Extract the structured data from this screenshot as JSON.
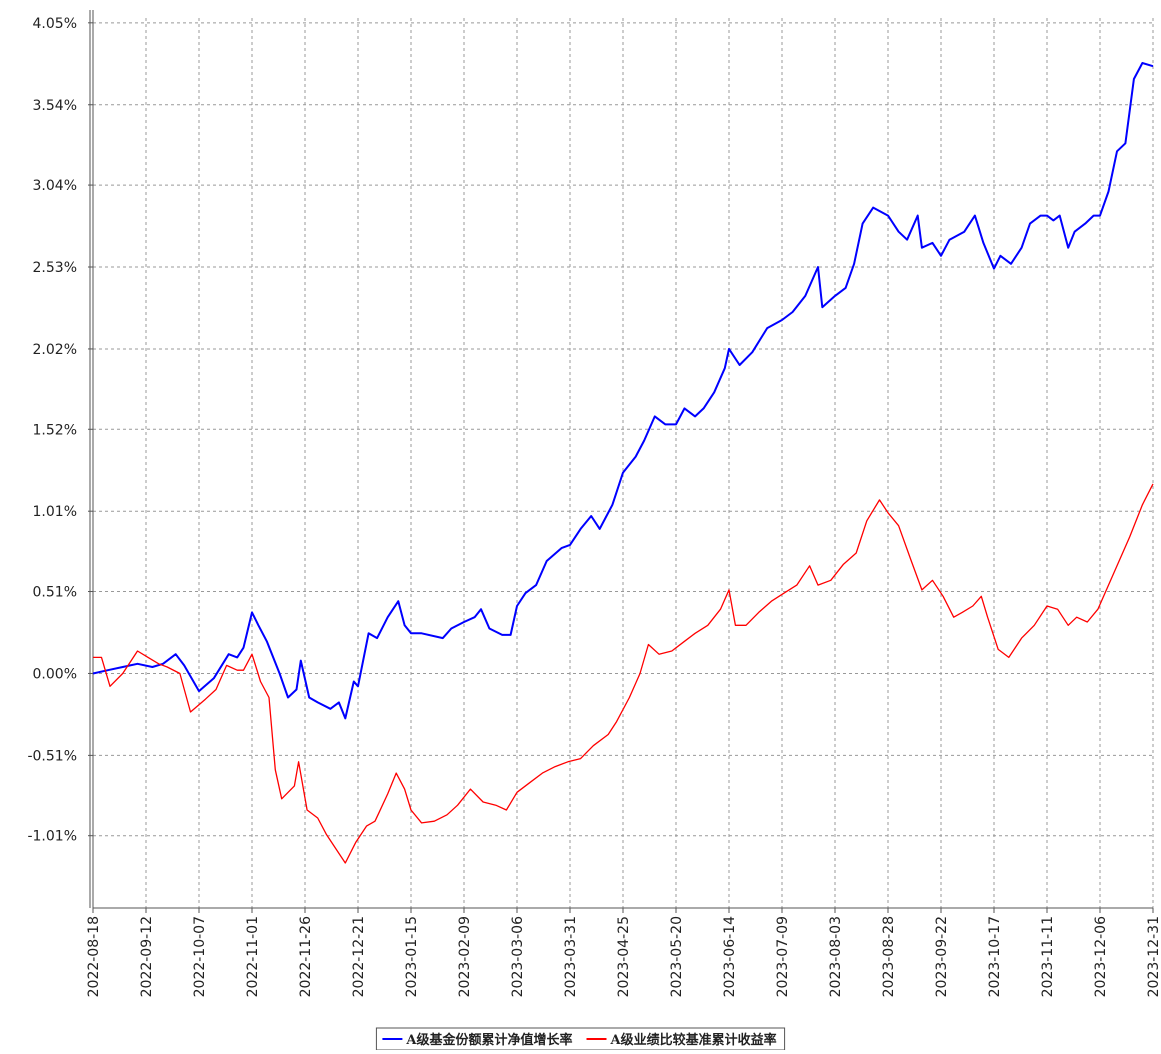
{
  "chart_data": {
    "type": "line",
    "xlim": [
      "2022-08-18",
      "2023-12-31"
    ],
    "xticks": [
      "2022-08-18",
      "2022-09-12",
      "2022-10-07",
      "2022-11-01",
      "2022-11-26",
      "2022-12-21",
      "2023-01-15",
      "2023-02-09",
      "2023-03-06",
      "2023-03-31",
      "2023-04-25",
      "2023-05-20",
      "2023-06-14",
      "2023-07-09",
      "2023-08-03",
      "2023-08-28",
      "2023-09-22",
      "2023-10-17",
      "2023-11-11",
      "2023-12-06",
      "2023-12-31"
    ],
    "ylim": [
      -1.46,
      4.08
    ],
    "yticks": [
      {
        "value": 4.05,
        "label": "4.05%"
      },
      {
        "value": 3.54,
        "label": "3.54%"
      },
      {
        "value": 3.04,
        "label": "3.04%"
      },
      {
        "value": 2.53,
        "label": "2.53%"
      },
      {
        "value": 2.02,
        "label": "2.02%"
      },
      {
        "value": 1.52,
        "label": "1.52%"
      },
      {
        "value": 1.01,
        "label": "1.01%"
      },
      {
        "value": 0.51,
        "label": "0.51%"
      },
      {
        "value": 0,
        "label": "0.00%"
      },
      {
        "value": -0.51,
        "label": "-0.51%"
      },
      {
        "value": -1.01,
        "label": "-1.01%"
      }
    ],
    "grid": true,
    "legend": "bottom",
    "series": [
      {
        "name": "A级基金份额累计净值增长率",
        "color": "#0000ff",
        "x": [
          "2022-08-18",
          "2022-08-25",
          "2022-09-01",
          "2022-09-08",
          "2022-09-15",
          "2022-09-20",
          "2022-09-26",
          "2022-09-30",
          "2022-10-07",
          "2022-10-14",
          "2022-10-21",
          "2022-10-25",
          "2022-10-28",
          "2022-11-01",
          "2022-11-04",
          "2022-11-08",
          "2022-11-14",
          "2022-11-18",
          "2022-11-22",
          "2022-11-24",
          "2022-11-28",
          "2022-12-02",
          "2022-12-08",
          "2022-12-12",
          "2022-12-15",
          "2022-12-19",
          "2022-12-21",
          "2022-12-26",
          "2022-12-30",
          "2023-01-04",
          "2023-01-09",
          "2023-01-12",
          "2023-01-15",
          "2023-01-20",
          "2023-01-30",
          "2023-02-03",
          "2023-02-09",
          "2023-02-14",
          "2023-02-17",
          "2023-02-21",
          "2023-02-27",
          "2023-03-03",
          "2023-03-06",
          "2023-03-10",
          "2023-03-15",
          "2023-03-20",
          "2023-03-27",
          "2023-03-31",
          "2023-04-05",
          "2023-04-10",
          "2023-04-14",
          "2023-04-20",
          "2023-04-25",
          "2023-05-01",
          "2023-05-05",
          "2023-05-10",
          "2023-05-15",
          "2023-05-20",
          "2023-05-24",
          "2023-05-29",
          "2023-06-02",
          "2023-06-07",
          "2023-06-12",
          "2023-06-14",
          "2023-06-19",
          "2023-06-25",
          "2023-07-02",
          "2023-07-09",
          "2023-07-14",
          "2023-07-20",
          "2023-07-26",
          "2023-07-28",
          "2023-08-03",
          "2023-08-08",
          "2023-08-12",
          "2023-08-16",
          "2023-08-21",
          "2023-08-28",
          "2023-09-02",
          "2023-09-06",
          "2023-09-11",
          "2023-09-13",
          "2023-09-18",
          "2023-09-22",
          "2023-09-26",
          "2023-10-03",
          "2023-10-08",
          "2023-10-12",
          "2023-10-17",
          "2023-10-20",
          "2023-10-25",
          "2023-10-30",
          "2023-11-03",
          "2023-11-08",
          "2023-11-11",
          "2023-11-14",
          "2023-11-17",
          "2023-11-21",
          "2023-11-24",
          "2023-11-29",
          "2023-12-03",
          "2023-12-06",
          "2023-12-10",
          "2023-12-14",
          "2023-12-18",
          "2023-12-22",
          "2023-12-26",
          "2023-12-31"
        ],
        "values": [
          0.0,
          0.02,
          0.04,
          0.06,
          0.04,
          0.06,
          0.12,
          0.05,
          -0.11,
          -0.03,
          0.12,
          0.1,
          0.16,
          0.38,
          0.3,
          0.2,
          0.0,
          -0.15,
          -0.1,
          0.08,
          -0.15,
          -0.18,
          -0.22,
          -0.18,
          -0.28,
          -0.05,
          -0.08,
          0.25,
          0.22,
          0.35,
          0.45,
          0.3,
          0.25,
          0.25,
          0.22,
          0.28,
          0.32,
          0.35,
          0.4,
          0.28,
          0.24,
          0.24,
          0.42,
          0.5,
          0.55,
          0.7,
          0.78,
          0.8,
          0.9,
          0.98,
          0.9,
          1.05,
          1.25,
          1.35,
          1.45,
          1.6,
          1.55,
          1.55,
          1.65,
          1.6,
          1.65,
          1.75,
          1.9,
          2.02,
          1.92,
          2.0,
          2.15,
          2.2,
          2.25,
          2.35,
          2.53,
          2.28,
          2.35,
          2.4,
          2.55,
          2.8,
          2.9,
          2.85,
          2.75,
          2.7,
          2.85,
          2.65,
          2.68,
          2.6,
          2.7,
          2.75,
          2.85,
          2.68,
          2.52,
          2.6,
          2.55,
          2.65,
          2.8,
          2.85,
          2.85,
          2.82,
          2.85,
          2.65,
          2.75,
          2.8,
          2.85,
          2.85,
          3.0,
          3.25,
          3.3,
          3.7,
          3.8,
          3.78
        ]
      },
      {
        "name": "A级业绩比较基准累计收益率",
        "color": "#ff0000",
        "x": [
          "2022-08-18",
          "2022-08-22",
          "2022-08-26",
          "2022-09-01",
          "2022-09-05",
          "2022-09-08",
          "2022-09-13",
          "2022-09-18",
          "2022-09-22",
          "2022-09-28",
          "2022-10-03",
          "2022-10-10",
          "2022-10-15",
          "2022-10-20",
          "2022-10-25",
          "2022-10-28",
          "2022-11-01",
          "2022-11-05",
          "2022-11-09",
          "2022-11-12",
          "2022-11-15",
          "2022-11-21",
          "2022-11-23",
          "2022-11-27",
          "2022-12-02",
          "2022-12-06",
          "2022-12-10",
          "2022-12-15",
          "2022-12-20",
          "2022-12-25",
          "2022-12-29",
          "2023-01-04",
          "2023-01-08",
          "2023-01-12",
          "2023-01-15",
          "2023-01-20",
          "2023-01-26",
          "2023-02-01",
          "2023-02-06",
          "2023-02-12",
          "2023-02-18",
          "2023-02-24",
          "2023-03-01",
          "2023-03-06",
          "2023-03-12",
          "2023-03-18",
          "2023-03-24",
          "2023-03-30",
          "2023-04-05",
          "2023-04-11",
          "2023-04-18",
          "2023-04-22",
          "2023-04-28",
          "2023-05-03",
          "2023-05-07",
          "2023-05-12",
          "2023-05-18",
          "2023-05-24",
          "2023-05-29",
          "2023-06-04",
          "2023-06-10",
          "2023-06-14",
          "2023-06-17",
          "2023-06-22",
          "2023-06-28",
          "2023-07-04",
          "2023-07-10",
          "2023-07-16",
          "2023-07-22",
          "2023-07-26",
          "2023-08-01",
          "2023-08-07",
          "2023-08-13",
          "2023-08-18",
          "2023-08-24",
          "2023-08-28",
          "2023-09-02",
          "2023-09-08",
          "2023-09-13",
          "2023-09-18",
          "2023-09-23",
          "2023-09-28",
          "2023-10-02",
          "2023-10-07",
          "2023-10-11",
          "2023-10-14",
          "2023-10-19",
          "2023-10-24",
          "2023-10-30",
          "2023-11-05",
          "2023-11-11",
          "2023-11-16",
          "2023-11-21",
          "2023-11-25",
          "2023-11-30",
          "2023-12-05",
          "2023-12-10",
          "2023-12-15",
          "2023-12-20",
          "2023-12-26",
          "2023-12-31"
        ],
        "values": [
          0.1,
          0.1,
          -0.08,
          0.0,
          0.08,
          0.14,
          0.1,
          0.06,
          0.04,
          0.0,
          -0.24,
          -0.16,
          -0.1,
          0.05,
          0.02,
          0.02,
          0.12,
          -0.05,
          -0.15,
          -0.6,
          -0.78,
          -0.7,
          -0.55,
          -0.85,
          -0.9,
          -1.0,
          -1.08,
          -1.18,
          -1.05,
          -0.95,
          -0.92,
          -0.75,
          -0.62,
          -0.72,
          -0.85,
          -0.93,
          -0.92,
          -0.88,
          -0.82,
          -0.72,
          -0.8,
          -0.82,
          -0.85,
          -0.74,
          -0.68,
          -0.62,
          -0.58,
          -0.55,
          -0.53,
          -0.45,
          -0.38,
          -0.3,
          -0.15,
          0.0,
          0.18,
          0.12,
          0.14,
          0.2,
          0.25,
          0.3,
          0.4,
          0.52,
          0.3,
          0.3,
          0.38,
          0.45,
          0.5,
          0.55,
          0.67,
          0.55,
          0.58,
          0.68,
          0.75,
          0.95,
          1.08,
          1.0,
          0.92,
          0.7,
          0.52,
          0.58,
          0.48,
          0.35,
          0.38,
          0.42,
          0.48,
          0.35,
          0.15,
          0.1,
          0.22,
          0.3,
          0.42,
          0.4,
          0.3,
          0.35,
          0.32,
          0.4,
          0.55,
          0.7,
          0.85,
          1.05,
          1.18
        ]
      }
    ]
  }
}
